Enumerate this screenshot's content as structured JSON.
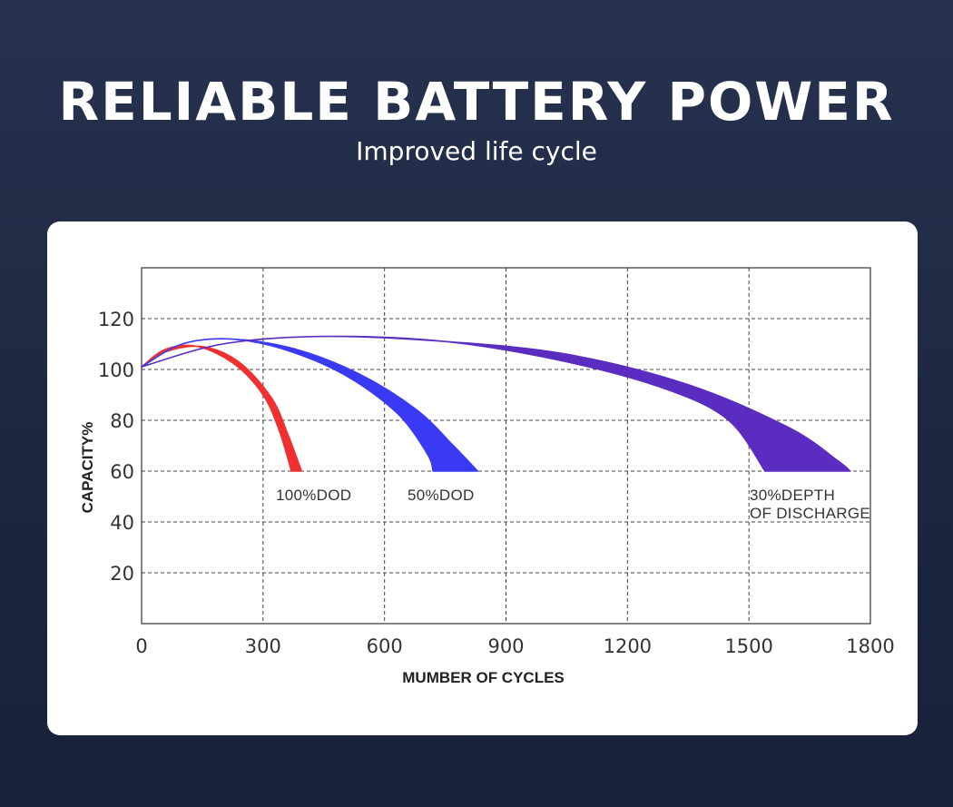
{
  "header": {
    "title": "RELIABLE BATTERY POWER",
    "subtitle": "Improved life cycle"
  },
  "chart_data": {
    "type": "area",
    "xlabel": "MUMBER OF CYCLES",
    "ylabel": "CAPACITY%",
    "xlim": [
      0,
      1800
    ],
    "ylim": [
      0,
      140
    ],
    "x_ticks": [
      0,
      300,
      600,
      900,
      1200,
      1500,
      1800
    ],
    "y_ticks": [
      20,
      40,
      60,
      80,
      100,
      120
    ],
    "grid": "dashed",
    "series": [
      {
        "label_lines": [
          "100%DOD"
        ],
        "color": "#f03030",
        "upper": [
          [
            0,
            101
          ],
          [
            60,
            108
          ],
          [
            140,
            109
          ],
          [
            230,
            102
          ],
          [
            300,
            90
          ],
          [
            340,
            76
          ],
          [
            370,
            60
          ]
        ],
        "lower": [
          [
            0,
            101
          ],
          [
            60,
            107
          ],
          [
            150,
            109
          ],
          [
            240,
            103
          ],
          [
            320,
            89
          ],
          [
            360,
            75
          ],
          [
            395,
            60
          ]
        ]
      },
      {
        "label_lines": [
          "50%DOD"
        ],
        "color": "#3a3af5",
        "upper": [
          [
            0,
            101
          ],
          [
            100,
            110
          ],
          [
            220,
            112
          ],
          [
            350,
            108
          ],
          [
            500,
            98
          ],
          [
            630,
            83
          ],
          [
            705,
            67
          ],
          [
            720,
            60
          ]
        ],
        "lower": [
          [
            0,
            101
          ],
          [
            100,
            110
          ],
          [
            220,
            112
          ],
          [
            380,
            108
          ],
          [
            540,
            98
          ],
          [
            680,
            84
          ],
          [
            770,
            70
          ],
          [
            830,
            60
          ]
        ]
      },
      {
        "label_lines": [
          "30%DEPTH",
          "OF DISCHARGE"
        ],
        "color": "#5a2dc0",
        "upper": [
          [
            0,
            101
          ],
          [
            200,
            110
          ],
          [
            450,
            113
          ],
          [
            750,
            111
          ],
          [
            1050,
            103
          ],
          [
            1300,
            92
          ],
          [
            1450,
            80
          ],
          [
            1540,
            60
          ]
        ],
        "lower": [
          [
            0,
            101
          ],
          [
            200,
            110
          ],
          [
            450,
            113
          ],
          [
            750,
            111
          ],
          [
            1050,
            106
          ],
          [
            1350,
            94
          ],
          [
            1600,
            77
          ],
          [
            1720,
            64
          ],
          [
            1750,
            60
          ]
        ]
      }
    ]
  }
}
